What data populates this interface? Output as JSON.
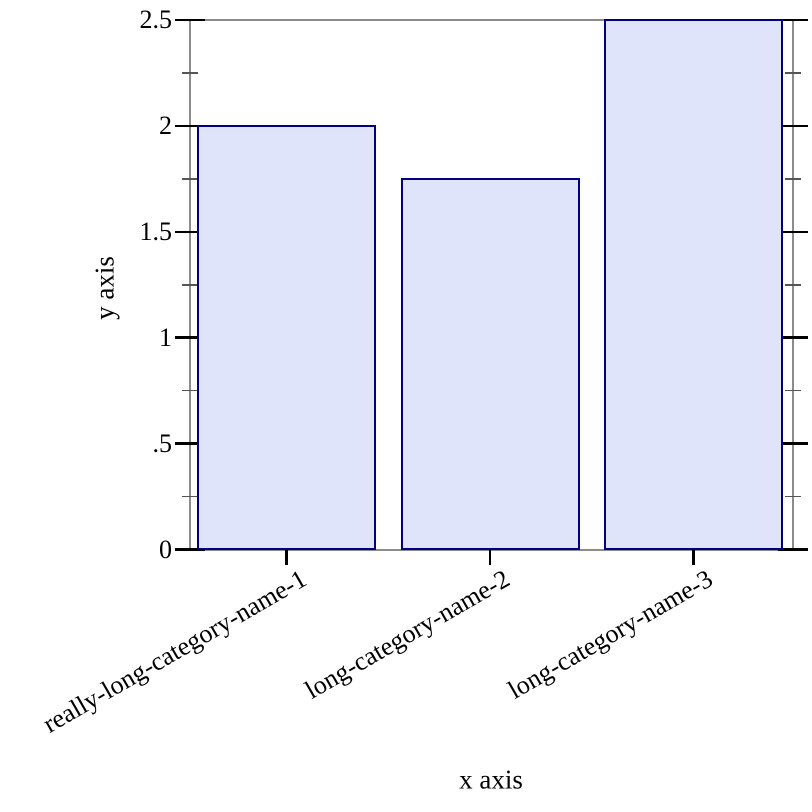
{
  "chart_data": {
    "type": "bar",
    "categories": [
      "really-long-category-name-1",
      "long-category-name-2",
      "long-category-name-3"
    ],
    "values": [
      2,
      1.75,
      2.5
    ],
    "xlabel": "x axis",
    "ylabel": "y axis",
    "ylim": [
      0,
      2.5
    ],
    "y_major_ticks": [
      0,
      0.5,
      1,
      1.5,
      2,
      2.5
    ],
    "y_major_tick_labels": [
      "0",
      ".5",
      "1",
      "1.5",
      "2",
      "2.5"
    ],
    "y_minor_ticks": [
      0.25,
      0.75,
      1.25,
      1.75,
      2.25
    ],
    "grid": false,
    "legend_position": "none",
    "frame": "full-box"
  },
  "colors": {
    "background": "#ffffff",
    "axis_frame": "#8c8c8c",
    "major_tick": "#000000",
    "minor_tick": "#555555",
    "bar_fill": "#e0e4fa",
    "bar_border": "#000080",
    "text": "#000000"
  }
}
